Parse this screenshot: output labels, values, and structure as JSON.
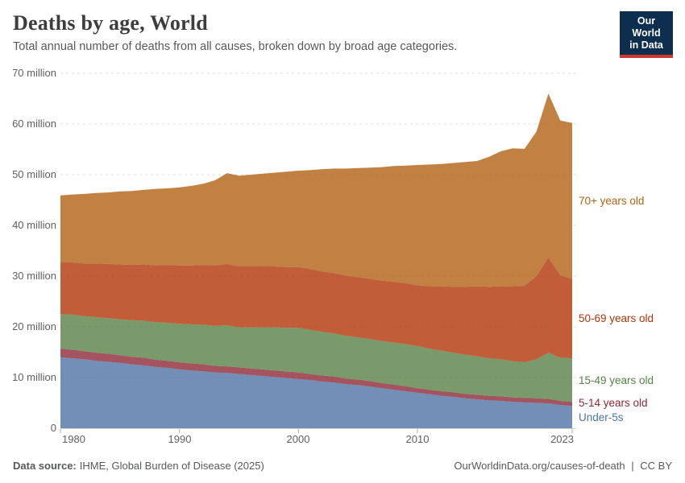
{
  "header": {
    "title": "Deaths by age, World",
    "subtitle": "Total annual number of deaths from all causes, broken down by broad age categories.",
    "logo": {
      "line1": "Our World",
      "line2": "in Data",
      "bg": "#0d2e4f",
      "accent": "#d0382e"
    }
  },
  "chart_data": {
    "type": "area",
    "stacked": true,
    "title": "Deaths by age, World",
    "unit": "deaths per year (millions)",
    "grid": "horizontal-dashed",
    "legend_position": "inline-right",
    "xlim": [
      1980,
      2023
    ],
    "ylim": [
      0,
      70
    ],
    "x": [
      1980,
      1981,
      1982,
      1983,
      1984,
      1985,
      1986,
      1987,
      1988,
      1989,
      1990,
      1991,
      1992,
      1993,
      1994,
      1995,
      1996,
      1997,
      1998,
      1999,
      2000,
      2001,
      2002,
      2003,
      2004,
      2005,
      2006,
      2007,
      2008,
      2009,
      2010,
      2011,
      2012,
      2013,
      2014,
      2015,
      2016,
      2017,
      2018,
      2019,
      2020,
      2021,
      2022,
      2023
    ],
    "series": [
      {
        "name": "Under-5s",
        "color": "#4E73A5",
        "values": [
          14.0,
          13.8,
          13.6,
          13.3,
          13.1,
          12.9,
          12.6,
          12.4,
          12.1,
          11.9,
          11.6,
          11.4,
          11.2,
          11.0,
          10.9,
          10.7,
          10.5,
          10.3,
          10.1,
          9.9,
          9.7,
          9.5,
          9.2,
          9.0,
          8.7,
          8.5,
          8.2,
          7.9,
          7.6,
          7.3,
          7.0,
          6.7,
          6.4,
          6.2,
          5.9,
          5.7,
          5.5,
          5.4,
          5.2,
          5.1,
          5.0,
          4.9,
          4.6,
          4.4
        ]
      },
      {
        "name": "5-14 years old",
        "color": "#8C2936",
        "values": [
          1.7,
          1.7,
          1.6,
          1.6,
          1.6,
          1.5,
          1.5,
          1.5,
          1.4,
          1.4,
          1.4,
          1.4,
          1.4,
          1.3,
          1.3,
          1.3,
          1.3,
          1.3,
          1.3,
          1.3,
          1.3,
          1.2,
          1.2,
          1.2,
          1.1,
          1.1,
          1.1,
          1.0,
          1.0,
          1.0,
          0.9,
          0.9,
          0.9,
          0.9,
          0.9,
          0.9,
          0.9,
          0.9,
          0.9,
          0.9,
          0.9,
          0.9,
          0.8,
          0.8
        ]
      },
      {
        "name": "15-49 years old",
        "color": "#578145",
        "values": [
          6.8,
          6.9,
          6.9,
          7.0,
          7.0,
          7.1,
          7.2,
          7.3,
          7.4,
          7.5,
          7.6,
          7.7,
          7.8,
          7.9,
          8.1,
          7.9,
          8.1,
          8.3,
          8.5,
          8.6,
          8.8,
          8.7,
          8.6,
          8.5,
          8.4,
          8.3,
          8.3,
          8.3,
          8.3,
          8.3,
          8.3,
          8.1,
          8.0,
          7.8,
          7.7,
          7.6,
          7.4,
          7.3,
          7.1,
          7.0,
          7.7,
          9.1,
          8.5,
          8.6
        ]
      },
      {
        "name": "50-69 years old",
        "color": "#B13507",
        "values": [
          10.2,
          10.3,
          10.4,
          10.6,
          10.7,
          10.8,
          10.9,
          11.1,
          11.2,
          11.4,
          11.5,
          11.6,
          11.8,
          11.9,
          12.1,
          12.0,
          12.0,
          12.0,
          12.0,
          12.0,
          12.0,
          12.0,
          11.9,
          11.9,
          11.9,
          11.9,
          11.9,
          11.9,
          12.0,
          12.0,
          12.0,
          12.3,
          12.7,
          13.0,
          13.4,
          13.8,
          14.1,
          14.4,
          14.8,
          15.1,
          16.4,
          18.8,
          16.3,
          15.6
        ]
      },
      {
        "name": "70+ years old",
        "color": "#B16214",
        "values": [
          13.2,
          13.4,
          13.7,
          13.9,
          14.1,
          14.4,
          14.6,
          14.7,
          15.1,
          15.1,
          15.4,
          15.7,
          16.0,
          16.8,
          17.9,
          17.9,
          18.1,
          18.3,
          18.5,
          18.8,
          19.0,
          19.5,
          20.2,
          20.6,
          21.1,
          21.5,
          21.9,
          22.4,
          22.8,
          23.2,
          23.7,
          24.0,
          24.1,
          24.4,
          24.6,
          24.7,
          25.6,
          26.6,
          27.2,
          27.0,
          28.5,
          32.3,
          30.5,
          30.8
        ]
      }
    ],
    "yticks": [
      {
        "value": 0,
        "label": "0"
      },
      {
        "value": 10,
        "label": "10 million"
      },
      {
        "value": 20,
        "label": "20 million"
      },
      {
        "value": 30,
        "label": "30 million"
      },
      {
        "value": 40,
        "label": "40 million"
      },
      {
        "value": 50,
        "label": "50 million"
      },
      {
        "value": 60,
        "label": "60 million"
      },
      {
        "value": 70,
        "label": "70 million"
      }
    ],
    "xticks": [
      {
        "value": 1980,
        "label": "1980"
      },
      {
        "value": 1990,
        "label": "1990"
      },
      {
        "value": 2000,
        "label": "2000"
      },
      {
        "value": 2010,
        "label": "2010"
      },
      {
        "value": 2023,
        "label": "2023"
      }
    ]
  },
  "footer": {
    "source_label": "Data source:",
    "source_value": "IHME, Global Burden of Disease (2025)",
    "link": "OurWorldinData.org/causes-of-death",
    "separator": "|",
    "license": "CC BY"
  }
}
